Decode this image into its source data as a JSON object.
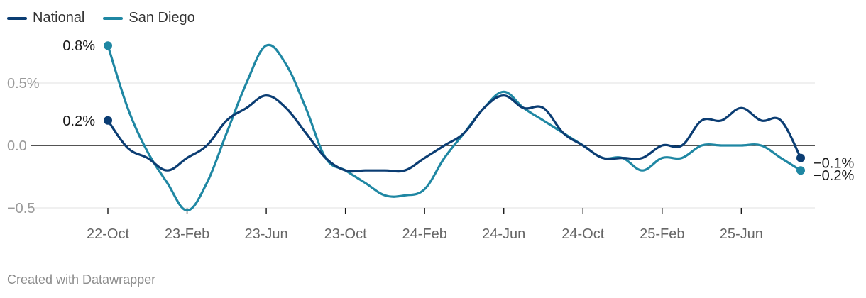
{
  "chart_data": {
    "type": "line",
    "x_tick_labels": [
      "22-Oct",
      "23-Feb",
      "23-Jun",
      "23-Oct",
      "24-Feb",
      "24-Jun",
      "24-Oct",
      "25-Feb",
      "25-Jun"
    ],
    "y_tick_labels": [
      "0.5%",
      "0.0",
      "−0.5"
    ],
    "y_ticks": [
      0.5,
      0.0,
      -0.5
    ],
    "ylim": [
      -0.5,
      0.8
    ],
    "x": [
      "2022-10",
      "2022-11",
      "2022-12",
      "2023-01",
      "2023-02",
      "2023-03",
      "2023-04",
      "2023-05",
      "2023-06",
      "2023-07",
      "2023-08",
      "2023-09",
      "2023-10",
      "2023-11",
      "2023-12",
      "2024-01",
      "2024-02",
      "2024-03",
      "2024-04",
      "2024-05",
      "2024-06",
      "2024-07",
      "2024-08",
      "2024-09",
      "2024-10",
      "2024-11",
      "2024-12",
      "2025-01",
      "2025-02",
      "2025-03",
      "2025-04",
      "2025-05",
      "2025-06",
      "2025-07",
      "2025-08",
      "2025-09"
    ],
    "series": [
      {
        "name": "National",
        "color": "#0b3d73",
        "values": [
          0.2,
          -0.02,
          -0.1,
          -0.2,
          -0.1,
          0.0,
          0.2,
          0.3,
          0.4,
          0.3,
          0.1,
          -0.1,
          -0.2,
          -0.2,
          -0.2,
          -0.2,
          -0.1,
          0.0,
          0.1,
          0.3,
          0.4,
          0.3,
          0.3,
          0.1,
          0.0,
          -0.1,
          -0.1,
          -0.1,
          0.0,
          0.0,
          0.2,
          0.2,
          0.3,
          0.2,
          0.2,
          -0.1
        ],
        "end_label": "−0.1%",
        "start_label": "0.2%"
      },
      {
        "name": "San Diego",
        "color": "#1f87a3",
        "values": [
          0.8,
          0.3,
          -0.05,
          -0.3,
          -0.52,
          -0.3,
          0.1,
          0.5,
          0.8,
          0.65,
          0.3,
          -0.1,
          -0.2,
          -0.3,
          -0.4,
          -0.4,
          -0.35,
          -0.1,
          0.1,
          0.3,
          0.43,
          0.3,
          0.2,
          0.1,
          0.0,
          -0.1,
          -0.1,
          -0.2,
          -0.1,
          -0.1,
          0.0,
          0.0,
          0.0,
          0.0,
          -0.1,
          -0.2
        ],
        "end_label": "−0.2%",
        "start_label": "0.8%"
      }
    ],
    "legend": "top-left",
    "grid": true
  },
  "footer": "Created with Datawrapper"
}
